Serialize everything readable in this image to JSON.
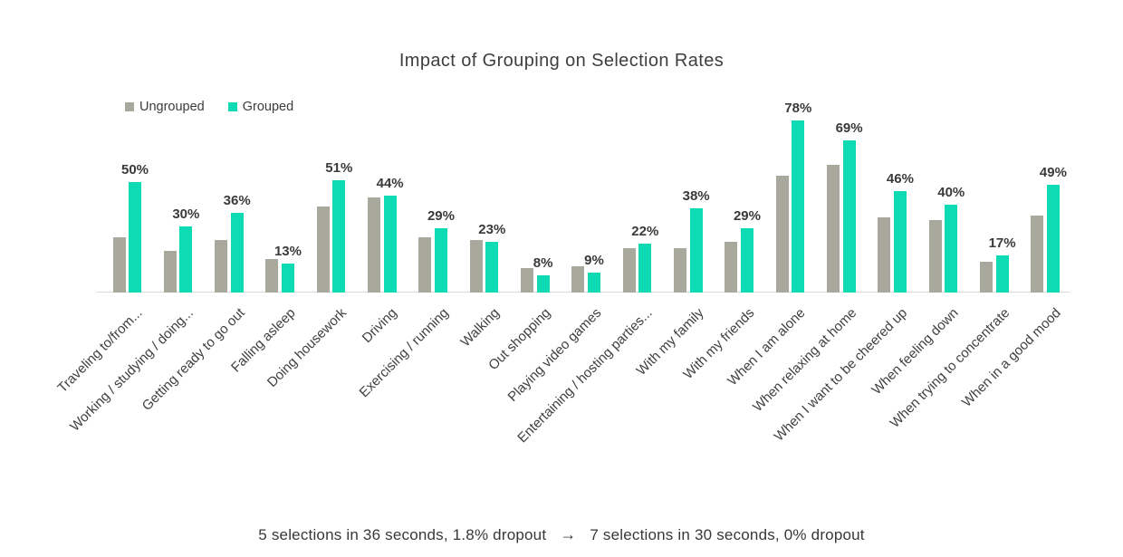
{
  "chart_data": {
    "type": "bar",
    "title": "Impact of Grouping on Selection Rates",
    "categories": [
      "Traveling to/from...",
      "Working / studying / doing...",
      "Getting ready to go out",
      "Falling asleep",
      "Doing housework",
      "Driving",
      "Exercising / running",
      "Walking",
      "Out shopping",
      "Playing video games",
      "Entertaining / hosting parties...",
      "With my family",
      "With my friends",
      "When I am alone",
      "When relaxing at home",
      "When I want to be cheered up",
      "When feeling down",
      "When trying to concentrate",
      "When in a good mood"
    ],
    "series": [
      {
        "name": "Ungrouped",
        "color": "#a9a89d",
        "values": [
          25,
          19,
          24,
          15,
          39,
          43,
          25,
          24,
          11,
          12,
          20,
          20,
          23,
          53,
          58,
          34,
          33,
          14,
          35
        ]
      },
      {
        "name": "Grouped",
        "color": "#0edab4",
        "values": [
          50,
          30,
          36,
          13,
          51,
          44,
          29,
          23,
          8,
          9,
          22,
          38,
          29,
          78,
          69,
          46,
          40,
          17,
          49
        ]
      }
    ],
    "data_labels": [
      "50%",
      "30%",
      "36%",
      "13%",
      "51%",
      "44%",
      "29%",
      "23%",
      "8%",
      "9%",
      "22%",
      "38%",
      "29%",
      "78%",
      "69%",
      "46%",
      "40%",
      "17%",
      "49%"
    ],
    "data_label_series": "Grouped",
    "ylim": [
      0,
      85
    ],
    "grid": false,
    "legend_position": "top-left",
    "axis_line_color": "#d9d9d9"
  },
  "caption": {
    "before": "5 selections in 36 seconds, 1.8% dropout",
    "arrow": "→",
    "after": "7 selections in 30 seconds, 0% dropout"
  }
}
